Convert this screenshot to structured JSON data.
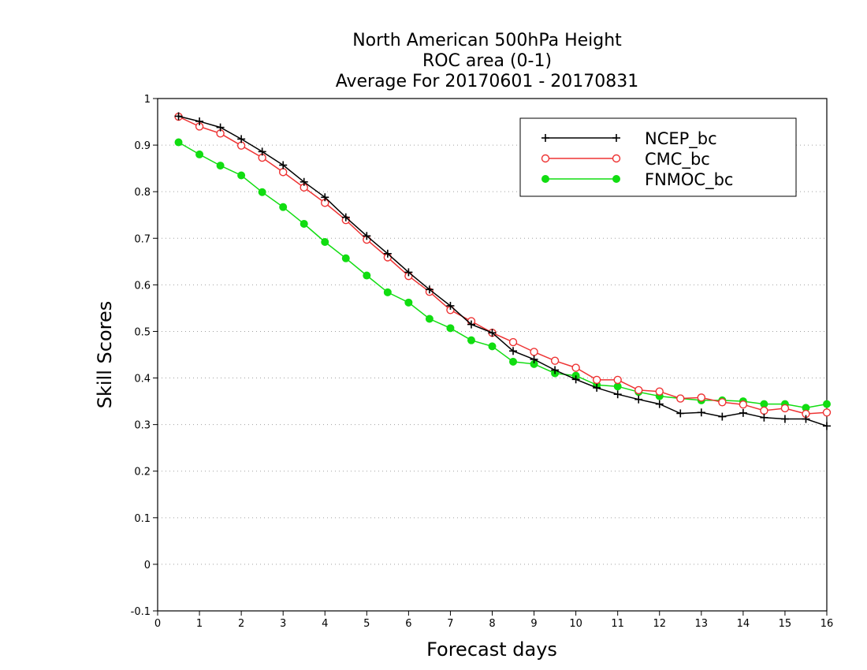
{
  "chart_data": {
    "type": "line",
    "title_lines": [
      "North American 500hPa Height",
      "ROC area (0-1)",
      "Average For 20170601 - 20170831"
    ],
    "xlabel": "Forecast days",
    "ylabel": "Skill Scores",
    "xlim": [
      0,
      16
    ],
    "ylim": [
      -0.1,
      1
    ],
    "x_ticks": [
      0,
      1,
      2,
      3,
      4,
      5,
      6,
      7,
      8,
      9,
      10,
      11,
      12,
      13,
      14,
      15,
      16
    ],
    "y_ticks": [
      -0.1,
      0,
      0.1,
      0.2,
      0.3,
      0.4,
      0.5,
      0.6,
      0.7,
      0.8,
      0.9,
      1
    ],
    "y_tick_labels": [
      "-0.1",
      "0",
      "0.1",
      "0.2",
      "0.3",
      "0.4",
      "0.5",
      "0.6",
      "0.7",
      "0.8",
      "0.9",
      "1"
    ],
    "grid": "horizontal dotted",
    "legend_position": "top-right",
    "x": [
      0.5,
      1,
      1.5,
      2,
      2.5,
      3,
      3.5,
      4,
      4.5,
      5,
      5.5,
      6,
      6.5,
      7,
      7.5,
      8,
      8.5,
      9,
      9.5,
      10,
      10.5,
      11,
      11.5,
      12,
      12.5,
      13,
      13.5,
      14,
      14.5,
      15,
      15.5,
      16
    ],
    "series": [
      {
        "name": "NCEP_bc",
        "color": "#000000",
        "marker": "plus",
        "values": [
          0.962,
          0.951,
          0.938,
          0.913,
          0.886,
          0.857,
          0.821,
          0.788,
          0.745,
          0.705,
          0.667,
          0.627,
          0.59,
          0.555,
          0.515,
          0.497,
          0.458,
          0.44,
          0.417,
          0.397,
          0.379,
          0.365,
          0.354,
          0.344,
          0.324,
          0.326,
          0.317,
          0.325,
          0.315,
          0.312,
          0.312,
          0.297
        ]
      },
      {
        "name": "CMC_bc",
        "color": "#ee3333",
        "marker": "open-circle",
        "values": [
          0.961,
          0.94,
          0.925,
          0.899,
          0.873,
          0.842,
          0.809,
          0.776,
          0.739,
          0.697,
          0.659,
          0.619,
          0.585,
          0.546,
          0.522,
          0.497,
          0.477,
          0.456,
          0.437,
          0.422,
          0.396,
          0.396,
          0.374,
          0.371,
          0.356,
          0.358,
          0.348,
          0.343,
          0.33,
          0.335,
          0.323,
          0.326
        ]
      },
      {
        "name": "FNMOC_bc",
        "color": "#11dd11",
        "marker": "filled-circle",
        "values": [
          0.906,
          0.88,
          0.856,
          0.835,
          0.799,
          0.767,
          0.731,
          0.692,
          0.657,
          0.62,
          0.584,
          0.562,
          0.527,
          0.507,
          0.481,
          0.468,
          0.435,
          0.43,
          0.41,
          0.405,
          0.385,
          0.382,
          0.37,
          0.361,
          0.356,
          0.352,
          0.352,
          0.35,
          0.344,
          0.344,
          0.336,
          0.344
        ]
      }
    ]
  }
}
